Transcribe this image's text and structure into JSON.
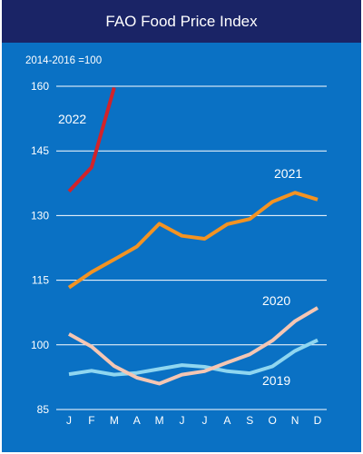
{
  "chart_data": {
    "type": "line",
    "title": "FAO Food Price Index",
    "unit_note": "2014-2016 =100",
    "categories": [
      "J",
      "F",
      "M",
      "A",
      "M",
      "J",
      "J",
      "A",
      "S",
      "O",
      "N",
      "D"
    ],
    "ylim": [
      85,
      160
    ],
    "yticks": [
      85,
      100,
      115,
      130,
      145,
      160
    ],
    "grid": true,
    "series": [
      {
        "name": "2022",
        "color": "#d2232a",
        "values": [
          135.6,
          141.2,
          159.7,
          null,
          null,
          null,
          null,
          null,
          null,
          null,
          null,
          null
        ]
      },
      {
        "name": "2021",
        "color": "#f39322",
        "values": [
          113.3,
          116.9,
          119.8,
          122.8,
          128.1,
          125.3,
          124.6,
          128.0,
          129.2,
          133.2,
          135.3,
          133.7
        ]
      },
      {
        "name": "2020",
        "color": "#f5c6b3",
        "values": [
          102.5,
          99.6,
          95.1,
          92.4,
          91.0,
          93.1,
          93.9,
          95.9,
          97.8,
          101.0,
          105.5,
          108.6
        ]
      },
      {
        "name": "2019",
        "color": "#8fd6f0",
        "values": [
          93.2,
          94.0,
          93.1,
          93.5,
          94.4,
          95.3,
          94.9,
          93.9,
          93.4,
          95.0,
          98.6,
          101.1
        ]
      }
    ]
  }
}
